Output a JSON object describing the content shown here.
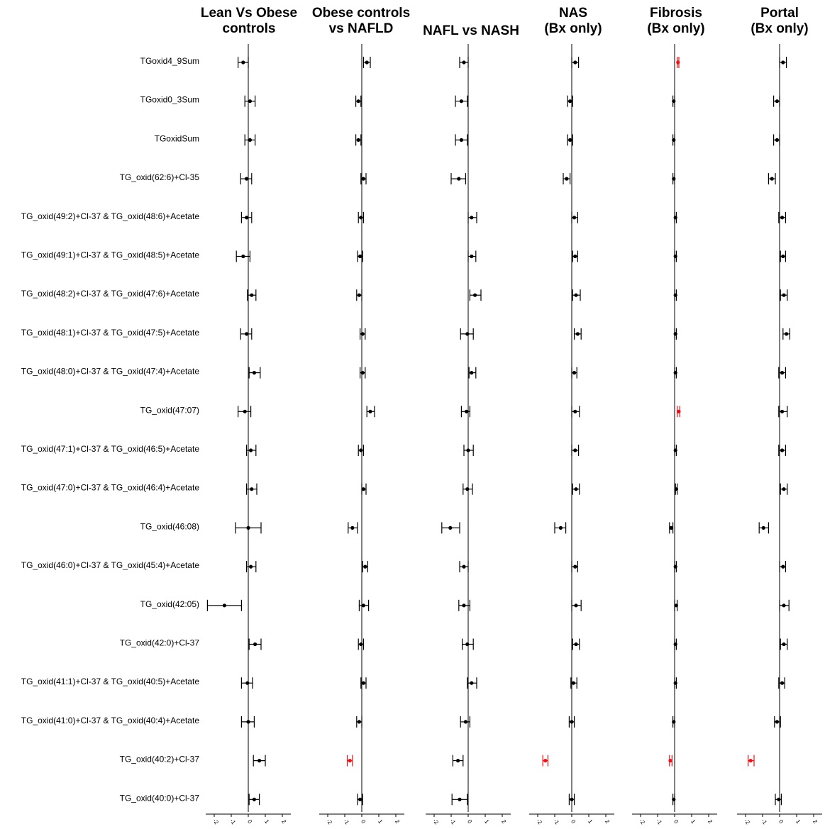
{
  "chart_data": {
    "type": "forest",
    "x_ticks": [
      -2,
      -1,
      0,
      1,
      2
    ],
    "xlim": [
      -2.5,
      2.5
    ],
    "significant_color": "#e8141b",
    "default_color": "#000000",
    "rows": [
      "TGoxid4_9Sum",
      "TGoxid0_3Sum",
      "TGoxidSum",
      "TG_oxid(62:6)+Cl-35",
      "TG_oxid(49:2)+Cl-37 & TG_oxid(48:6)+Acetate",
      "TG_oxid(49:1)+Cl-37 & TG_oxid(48:5)+Acetate",
      "TG_oxid(48:2)+Cl-37 & TG_oxid(47:6)+Acetate",
      "TG_oxid(48:1)+Cl-37 & TG_oxid(47:5)+Acetate",
      "TG_oxid(48:0)+Cl-37 & TG_oxid(47:4)+Acetate",
      "TG_oxid(47:07)",
      "TG_oxid(47:1)+Cl-37 & TG_oxid(46:5)+Acetate",
      "TG_oxid(47:0)+Cl-37 & TG_oxid(46:4)+Acetate",
      "TG_oxid(46:08)",
      "TG_oxid(46:0)+Cl-37 & TG_oxid(45:4)+Acetate",
      "TG_oxid(42:05)",
      "TG_oxid(42:0)+Cl-37",
      "TG_oxid(41:1)+Cl-37 & TG_oxid(40:5)+Acetate",
      "TG_oxid(41:0)+Cl-37 & TG_oxid(40:4)+Acetate",
      "TG_oxid(40:2)+Cl-37",
      "TG_oxid(40:0)+Cl-37"
    ],
    "panels": [
      {
        "title": [
          "Lean Vs Obese",
          "controls"
        ],
        "estimates": [
          [
            -0.3,
            -0.6,
            0.0,
            false
          ],
          [
            0.1,
            -0.2,
            0.4,
            false
          ],
          [
            0.1,
            -0.2,
            0.4,
            false
          ],
          [
            -0.1,
            -0.45,
            0.2,
            false
          ],
          [
            -0.1,
            -0.4,
            0.2,
            false
          ],
          [
            -0.3,
            -0.7,
            0.1,
            false
          ],
          [
            0.2,
            -0.05,
            0.45,
            false
          ],
          [
            -0.1,
            -0.45,
            0.2,
            false
          ],
          [
            0.35,
            0.05,
            0.7,
            false
          ],
          [
            -0.2,
            -0.6,
            0.15,
            false
          ],
          [
            0.15,
            -0.1,
            0.45,
            false
          ],
          [
            0.2,
            -0.1,
            0.5,
            false
          ],
          [
            0.0,
            -0.75,
            0.75,
            false
          ],
          [
            0.15,
            -0.1,
            0.45,
            false
          ],
          [
            -1.4,
            -2.4,
            -0.4,
            false
          ],
          [
            0.4,
            0.05,
            0.75,
            false
          ],
          [
            -0.05,
            -0.4,
            0.25,
            false
          ],
          [
            0.0,
            -0.4,
            0.35,
            false
          ],
          [
            0.65,
            0.3,
            1.0,
            false
          ],
          [
            0.35,
            0.05,
            0.65,
            false
          ]
        ]
      },
      {
        "title": [
          "Obese controls",
          "vs NAFLD"
        ],
        "estimates": [
          [
            0.3,
            0.1,
            0.5,
            false
          ],
          [
            -0.2,
            -0.35,
            -0.05,
            false
          ],
          [
            -0.2,
            -0.35,
            -0.05,
            false
          ],
          [
            0.1,
            -0.05,
            0.25,
            false
          ],
          [
            -0.05,
            -0.2,
            0.1,
            false
          ],
          [
            -0.1,
            -0.25,
            0.05,
            false
          ],
          [
            -0.15,
            -0.3,
            0.0,
            false
          ],
          [
            0.05,
            -0.1,
            0.2,
            false
          ],
          [
            0.05,
            -0.1,
            0.2,
            false
          ],
          [
            0.5,
            0.3,
            0.75,
            false
          ],
          [
            -0.05,
            -0.2,
            0.1,
            false
          ],
          [
            0.1,
            0.0,
            0.25,
            false
          ],
          [
            -0.55,
            -0.8,
            -0.25,
            false
          ],
          [
            0.2,
            0.05,
            0.35,
            false
          ],
          [
            0.1,
            -0.15,
            0.4,
            false
          ],
          [
            -0.05,
            -0.2,
            0.1,
            false
          ],
          [
            0.1,
            -0.05,
            0.25,
            false
          ],
          [
            -0.15,
            -0.3,
            0.0,
            false
          ],
          [
            -0.7,
            -0.85,
            -0.55,
            true
          ],
          [
            -0.1,
            -0.25,
            0.05,
            false
          ]
        ]
      },
      {
        "title": [
          "NAFL vs NASH"
        ],
        "estimates": [
          [
            -0.25,
            -0.5,
            0.0,
            false
          ],
          [
            -0.4,
            -0.75,
            -0.05,
            false
          ],
          [
            -0.4,
            -0.75,
            -0.05,
            false
          ],
          [
            -0.55,
            -1.0,
            -0.15,
            false
          ],
          [
            0.2,
            0.0,
            0.5,
            false
          ],
          [
            0.2,
            0.0,
            0.45,
            false
          ],
          [
            0.4,
            0.1,
            0.75,
            false
          ],
          [
            -0.05,
            -0.45,
            0.3,
            false
          ],
          [
            0.2,
            0.05,
            0.45,
            false
          ],
          [
            -0.1,
            -0.4,
            0.1,
            false
          ],
          [
            0.0,
            -0.25,
            0.3,
            false
          ],
          [
            -0.05,
            -0.3,
            0.25,
            false
          ],
          [
            -1.05,
            -1.55,
            -0.5,
            false
          ],
          [
            -0.25,
            -0.5,
            0.0,
            false
          ],
          [
            -0.25,
            -0.55,
            0.1,
            false
          ],
          [
            -0.05,
            -0.35,
            0.3,
            false
          ],
          [
            0.2,
            -0.05,
            0.5,
            false
          ],
          [
            -0.15,
            -0.45,
            0.1,
            false
          ],
          [
            -0.6,
            -0.9,
            -0.3,
            false
          ],
          [
            -0.5,
            -0.95,
            -0.05,
            false
          ]
        ]
      },
      {
        "title": [
          "NAS",
          "(Bx only)"
        ],
        "estimates": [
          [
            0.2,
            0.0,
            0.4,
            false
          ],
          [
            -0.1,
            -0.25,
            0.05,
            false
          ],
          [
            -0.1,
            -0.25,
            0.05,
            false
          ],
          [
            -0.3,
            -0.5,
            -0.1,
            false
          ],
          [
            0.15,
            0.0,
            0.35,
            false
          ],
          [
            0.2,
            0.05,
            0.35,
            false
          ],
          [
            0.25,
            0.05,
            0.5,
            false
          ],
          [
            0.35,
            0.15,
            0.55,
            false
          ],
          [
            0.15,
            0.0,
            0.3,
            false
          ],
          [
            0.2,
            0.0,
            0.45,
            false
          ],
          [
            0.2,
            0.0,
            0.4,
            false
          ],
          [
            0.25,
            0.05,
            0.45,
            false
          ],
          [
            -0.65,
            -1.0,
            -0.35,
            false
          ],
          [
            0.2,
            0.0,
            0.35,
            false
          ],
          [
            0.25,
            0.0,
            0.55,
            false
          ],
          [
            0.25,
            0.05,
            0.45,
            false
          ],
          [
            0.1,
            -0.05,
            0.3,
            false
          ],
          [
            0.0,
            -0.15,
            0.15,
            false
          ],
          [
            -1.55,
            -1.7,
            -1.4,
            true
          ],
          [
            0.0,
            -0.15,
            0.15,
            false
          ]
        ]
      },
      {
        "title": [
          "Fibrosis",
          "(Bx only)"
        ],
        "estimates": [
          [
            0.2,
            0.15,
            0.25,
            true
          ],
          [
            -0.05,
            -0.1,
            0.0,
            false
          ],
          [
            -0.05,
            -0.1,
            0.0,
            false
          ],
          [
            -0.05,
            -0.1,
            0.0,
            false
          ],
          [
            0.05,
            0.0,
            0.1,
            false
          ],
          [
            0.05,
            0.0,
            0.1,
            false
          ],
          [
            0.05,
            0.0,
            0.1,
            false
          ],
          [
            0.05,
            0.0,
            0.1,
            false
          ],
          [
            0.05,
            0.0,
            0.1,
            false
          ],
          [
            0.25,
            0.15,
            0.3,
            true
          ],
          [
            0.05,
            0.0,
            0.1,
            false
          ],
          [
            0.1,
            0.05,
            0.15,
            false
          ],
          [
            -0.2,
            -0.3,
            -0.1,
            false
          ],
          [
            0.05,
            0.0,
            0.1,
            false
          ],
          [
            0.1,
            0.0,
            0.15,
            false
          ],
          [
            0.05,
            0.0,
            0.1,
            false
          ],
          [
            0.05,
            0.0,
            0.1,
            false
          ],
          [
            -0.05,
            -0.1,
            0.0,
            false
          ],
          [
            -0.25,
            -0.3,
            -0.15,
            true
          ],
          [
            -0.05,
            -0.1,
            0.0,
            false
          ]
        ]
      },
      {
        "title": [
          "Portal",
          "(Bx only)"
        ],
        "estimates": [
          [
            0.2,
            0.0,
            0.4,
            false
          ],
          [
            -0.15,
            -0.35,
            0.0,
            false
          ],
          [
            -0.15,
            -0.35,
            0.0,
            false
          ],
          [
            -0.45,
            -0.65,
            -0.25,
            false
          ],
          [
            0.15,
            -0.05,
            0.35,
            false
          ],
          [
            0.2,
            0.05,
            0.35,
            false
          ],
          [
            0.25,
            0.05,
            0.45,
            false
          ],
          [
            0.4,
            0.2,
            0.6,
            false
          ],
          [
            0.15,
            -0.05,
            0.35,
            false
          ],
          [
            0.15,
            -0.05,
            0.45,
            false
          ],
          [
            0.15,
            -0.05,
            0.35,
            false
          ],
          [
            0.25,
            0.05,
            0.45,
            false
          ],
          [
            -0.95,
            -1.2,
            -0.65,
            false
          ],
          [
            0.2,
            0.0,
            0.35,
            false
          ],
          [
            0.25,
            0.0,
            0.55,
            false
          ],
          [
            0.25,
            0.05,
            0.45,
            false
          ],
          [
            0.15,
            -0.05,
            0.3,
            false
          ],
          [
            -0.15,
            -0.3,
            0.05,
            false
          ],
          [
            -1.7,
            -1.85,
            -1.5,
            true
          ],
          [
            -0.05,
            -0.25,
            0.1,
            false
          ]
        ]
      }
    ]
  }
}
